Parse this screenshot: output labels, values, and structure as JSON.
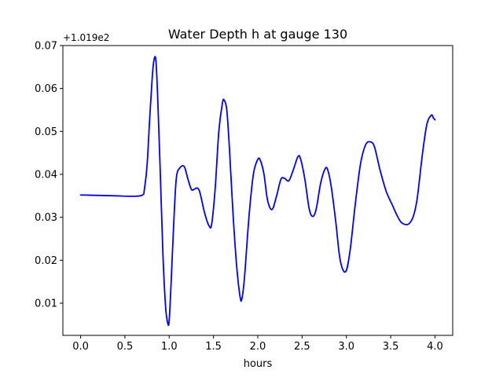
{
  "chart_data": {
    "type": "line",
    "title": "Water Depth h at gauge 130",
    "xlabel": "hours",
    "ylabel": "",
    "offset_label": "+1.019e2",
    "xlim": [
      -0.2,
      4.2
    ],
    "ylim": [
      0.0025,
      0.07
    ],
    "xticks": [
      0.0,
      0.5,
      1.0,
      1.5,
      2.0,
      2.5,
      3.0,
      3.5,
      4.0
    ],
    "xtick_labels": [
      "0.0",
      "0.5",
      "1.0",
      "1.5",
      "2.0",
      "2.5",
      "3.0",
      "3.5",
      "4.0"
    ],
    "yticks": [
      0.01,
      0.02,
      0.03,
      0.04,
      0.05,
      0.06,
      0.07
    ],
    "ytick_labels": [
      "0.01",
      "0.02",
      "0.03",
      "0.04",
      "0.05",
      "0.06",
      "0.07"
    ],
    "grid": false,
    "series": [
      {
        "color": "#0000ff",
        "x": [
          0.0,
          0.2,
          0.4,
          0.6,
          0.7,
          0.72,
          0.75,
          0.78,
          0.81,
          0.83,
          0.85,
          0.87,
          0.9,
          0.93,
          0.96,
          0.985,
          1.0,
          1.02,
          1.05,
          1.08,
          1.12,
          1.17,
          1.21,
          1.25,
          1.28,
          1.32,
          1.35,
          1.4,
          1.45,
          1.48,
          1.52,
          1.56,
          1.6,
          1.62,
          1.65,
          1.68,
          1.72,
          1.76,
          1.8,
          1.82,
          1.85,
          1.9,
          1.95,
          2.0,
          2.03,
          2.07,
          2.11,
          2.16,
          2.21,
          2.26,
          2.3,
          2.35,
          2.4,
          2.45,
          2.48,
          2.53,
          2.58,
          2.62,
          2.66,
          2.71,
          2.76,
          2.79,
          2.83,
          2.88,
          2.93,
          2.99,
          3.04,
          3.1,
          3.16,
          3.22,
          3.28,
          3.32,
          3.38,
          3.45,
          3.52,
          3.57,
          3.62,
          3.68,
          3.72,
          3.76,
          3.8,
          3.86,
          3.91,
          3.96,
          3.98,
          4.0
        ],
        "y": [
          0.0352,
          0.0351,
          0.035,
          0.0349,
          0.0352,
          0.0365,
          0.042,
          0.053,
          0.063,
          0.0668,
          0.0665,
          0.058,
          0.04,
          0.021,
          0.009,
          0.0052,
          0.006,
          0.014,
          0.028,
          0.039,
          0.0415,
          0.0418,
          0.039,
          0.0365,
          0.0365,
          0.0368,
          0.0355,
          0.031,
          0.028,
          0.0285,
          0.037,
          0.05,
          0.0565,
          0.0573,
          0.055,
          0.046,
          0.031,
          0.019,
          0.0115,
          0.011,
          0.016,
          0.03,
          0.04,
          0.0435,
          0.0432,
          0.04,
          0.034,
          0.0318,
          0.0348,
          0.0388,
          0.0391,
          0.0385,
          0.041,
          0.044,
          0.0438,
          0.039,
          0.032,
          0.0302,
          0.032,
          0.038,
          0.0413,
          0.041,
          0.037,
          0.029,
          0.02,
          0.0173,
          0.022,
          0.033,
          0.0425,
          0.047,
          0.0475,
          0.0462,
          0.041,
          0.036,
          0.0328,
          0.0305,
          0.0288,
          0.0283,
          0.0288,
          0.0305,
          0.0345,
          0.045,
          0.0518,
          0.0538,
          0.0532,
          0.0527
        ]
      }
    ]
  }
}
